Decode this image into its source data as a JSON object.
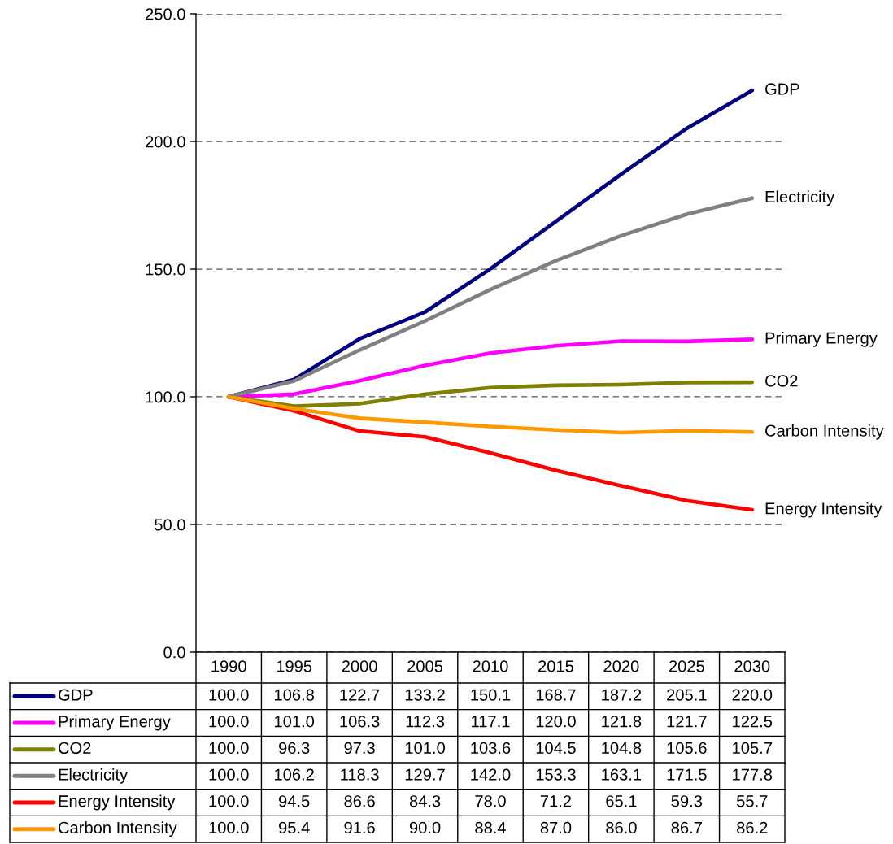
{
  "chart_data": {
    "type": "line",
    "categories": [
      "1990",
      "1995",
      "2000",
      "2005",
      "2010",
      "2015",
      "2020",
      "2025",
      "2030"
    ],
    "ylim": [
      0,
      250
    ],
    "yticks": [
      {
        "value": 0,
        "label": "0.0"
      },
      {
        "value": 50,
        "label": "50.0"
      },
      {
        "value": 100,
        "label": "100.0"
      },
      {
        "value": 150,
        "label": "150.0"
      },
      {
        "value": 200,
        "label": "200.0"
      },
      {
        "value": 250,
        "label": "250.0"
      }
    ],
    "grid": "y",
    "legend": "bottom",
    "line_style": "solid",
    "series": [
      {
        "name": "GDP",
        "color": "#000080",
        "values": [
          100.0,
          106.8,
          122.7,
          133.2,
          150.1,
          168.7,
          187.2,
          205.1,
          220.0
        ],
        "value_labels": [
          "100.0",
          "106.8",
          "122.7",
          "133.2",
          "150.1",
          "168.7",
          "187.2",
          "205.1",
          "220.0"
        ]
      },
      {
        "name": "Primary Energy",
        "color": "#ff00ff",
        "values": [
          100.0,
          101.0,
          106.3,
          112.3,
          117.1,
          120.0,
          121.8,
          121.7,
          122.5
        ],
        "value_labels": [
          "100.0",
          "101.0",
          "106.3",
          "112.3",
          "117.1",
          "120.0",
          "121.8",
          "121.7",
          "122.5"
        ]
      },
      {
        "name": "CO2",
        "color": "#808000",
        "values": [
          100.0,
          96.3,
          97.3,
          101.0,
          103.6,
          104.5,
          104.8,
          105.6,
          105.7
        ],
        "value_labels": [
          "100.0",
          "96.3",
          "97.3",
          "101.0",
          "103.6",
          "104.5",
          "104.8",
          "105.6",
          "105.7"
        ]
      },
      {
        "name": "Electricity",
        "color": "#808080",
        "values": [
          100.0,
          106.2,
          118.3,
          129.7,
          142.0,
          153.3,
          163.1,
          171.5,
          177.8
        ],
        "value_labels": [
          "100.0",
          "106.2",
          "118.3",
          "129.7",
          "142.0",
          "153.3",
          "163.1",
          "171.5",
          "177.8"
        ]
      },
      {
        "name": "Energy Intensity",
        "color": "#ff0000",
        "values": [
          100.0,
          94.5,
          86.6,
          84.3,
          78.0,
          71.2,
          65.1,
          59.3,
          55.7
        ],
        "value_labels": [
          "100.0",
          "94.5",
          "86.6",
          "84.3",
          "78.0",
          "71.2",
          "65.1",
          "59.3",
          "55.7"
        ]
      },
      {
        "name": "Carbon Intensity",
        "color": "#ff9900",
        "values": [
          100.0,
          95.4,
          91.6,
          90.0,
          88.4,
          87.0,
          86.0,
          86.7,
          86.2
        ],
        "value_labels": [
          "100.0",
          "95.4",
          "91.6",
          "90.0",
          "88.4",
          "87.0",
          "86.0",
          "86.7",
          "86.2"
        ]
      }
    ]
  }
}
